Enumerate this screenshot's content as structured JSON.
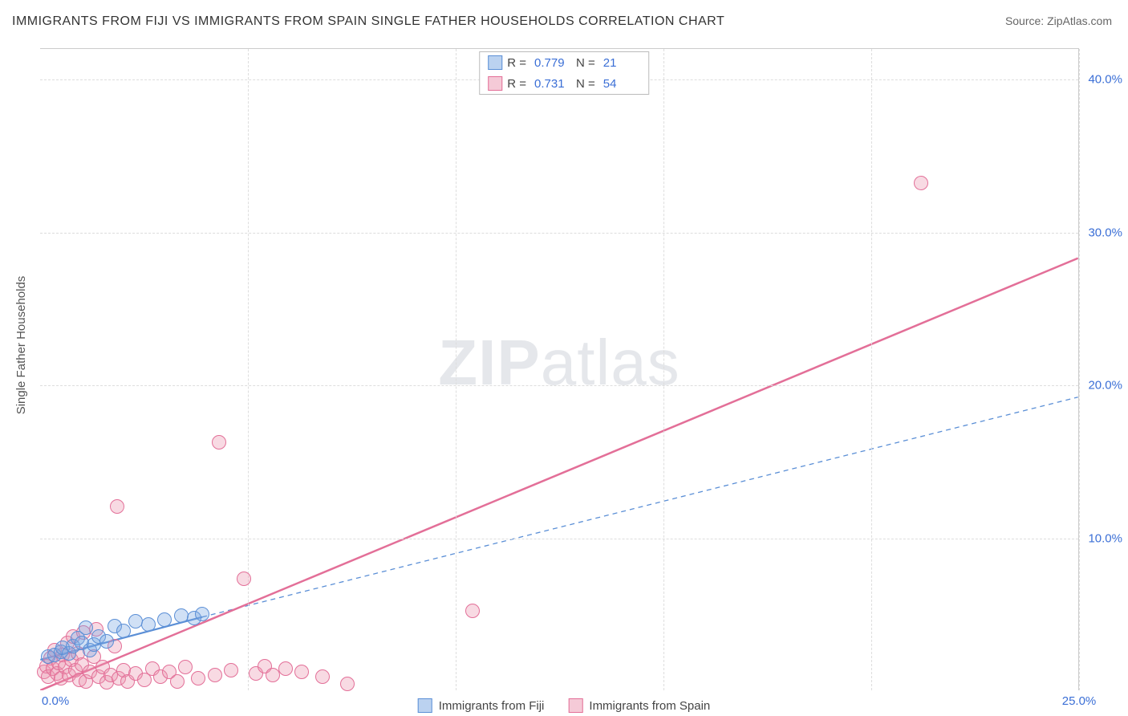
{
  "title": "IMMIGRANTS FROM FIJI VS IMMIGRANTS FROM SPAIN SINGLE FATHER HOUSEHOLDS CORRELATION CHART",
  "source_label": "Source:",
  "source_value": "ZipAtlas.com",
  "watermark_zip": "ZIP",
  "watermark_atlas": "atlas",
  "y_axis_title": "Single Father Households",
  "chart": {
    "type": "scatter",
    "xlim": [
      0,
      25
    ],
    "ylim": [
      0,
      42
    ],
    "x_ticks": [
      0,
      5,
      10,
      15,
      20,
      25
    ],
    "x_tick_labels": [
      "0.0%",
      "",
      "",
      "",
      "",
      "25.0%"
    ],
    "y_ticks": [
      10,
      20,
      30,
      40
    ],
    "y_tick_labels": [
      "10.0%",
      "20.0%",
      "30.0%",
      "40.0%"
    ],
    "background_color": "#ffffff",
    "grid_color": "#dddddd",
    "marker_radius": 9,
    "series": {
      "fiji": {
        "label": "Immigrants from Fiji",
        "color_fill": "rgba(120,165,225,0.35)",
        "color_stroke": "#5b8fd6",
        "r_value": "0.779",
        "n_value": "21",
        "trend": {
          "x1": 0,
          "y1": 2.0,
          "x2": 3.9,
          "y2": 4.8,
          "dash": "none",
          "width": 2.2,
          "ext_x2": 25,
          "ext_y2": 19.2,
          "ext_dash": "6,5",
          "ext_width": 1.3
        },
        "points": [
          {
            "x": 0.2,
            "y": 2.2
          },
          {
            "x": 0.35,
            "y": 2.3
          },
          {
            "x": 0.5,
            "y": 2.5
          },
          {
            "x": 0.55,
            "y": 2.8
          },
          {
            "x": 0.7,
            "y": 2.4
          },
          {
            "x": 0.8,
            "y": 2.9
          },
          {
            "x": 0.9,
            "y": 3.4
          },
          {
            "x": 1.0,
            "y": 3.1
          },
          {
            "x": 1.1,
            "y": 4.1
          },
          {
            "x": 1.2,
            "y": 2.6
          },
          {
            "x": 1.3,
            "y": 3.0
          },
          {
            "x": 1.4,
            "y": 3.5
          },
          {
            "x": 1.6,
            "y": 3.2
          },
          {
            "x": 1.8,
            "y": 4.2
          },
          {
            "x": 2.0,
            "y": 3.9
          },
          {
            "x": 2.3,
            "y": 4.5
          },
          {
            "x": 2.6,
            "y": 4.3
          },
          {
            "x": 3.0,
            "y": 4.6
          },
          {
            "x": 3.4,
            "y": 4.9
          },
          {
            "x": 3.7,
            "y": 4.7
          },
          {
            "x": 3.9,
            "y": 5.0
          }
        ]
      },
      "spain": {
        "label": "Immigrants from Spain",
        "color_fill": "rgba(235,150,175,0.35)",
        "color_stroke": "#e36f98",
        "r_value": "0.731",
        "n_value": "54",
        "trend": {
          "x1": 0,
          "y1": 0.0,
          "x2": 25,
          "y2": 28.3,
          "dash": "none",
          "width": 2.5
        },
        "points": [
          {
            "x": 0.1,
            "y": 1.2
          },
          {
            "x": 0.15,
            "y": 1.6
          },
          {
            "x": 0.2,
            "y": 0.9
          },
          {
            "x": 0.25,
            "y": 2.1
          },
          {
            "x": 0.3,
            "y": 1.4
          },
          {
            "x": 0.35,
            "y": 2.6
          },
          {
            "x": 0.4,
            "y": 1.1
          },
          {
            "x": 0.45,
            "y": 1.8
          },
          {
            "x": 0.5,
            "y": 0.8
          },
          {
            "x": 0.55,
            "y": 2.3
          },
          {
            "x": 0.6,
            "y": 1.5
          },
          {
            "x": 0.65,
            "y": 3.1
          },
          {
            "x": 0.7,
            "y": 1.0
          },
          {
            "x": 0.75,
            "y": 2.0
          },
          {
            "x": 0.8,
            "y": 3.5
          },
          {
            "x": 0.85,
            "y": 1.3
          },
          {
            "x": 0.9,
            "y": 2.4
          },
          {
            "x": 0.95,
            "y": 0.7
          },
          {
            "x": 1.0,
            "y": 1.7
          },
          {
            "x": 1.05,
            "y": 3.8
          },
          {
            "x": 1.1,
            "y": 0.6
          },
          {
            "x": 1.2,
            "y": 1.2
          },
          {
            "x": 1.3,
            "y": 2.2
          },
          {
            "x": 1.35,
            "y": 4.0
          },
          {
            "x": 1.4,
            "y": 0.9
          },
          {
            "x": 1.5,
            "y": 1.5
          },
          {
            "x": 1.6,
            "y": 0.5
          },
          {
            "x": 1.7,
            "y": 1.0
          },
          {
            "x": 1.8,
            "y": 2.9
          },
          {
            "x": 1.85,
            "y": 12.0
          },
          {
            "x": 1.9,
            "y": 0.8
          },
          {
            "x": 2.0,
            "y": 1.3
          },
          {
            "x": 2.1,
            "y": 0.6
          },
          {
            "x": 2.3,
            "y": 1.1
          },
          {
            "x": 2.5,
            "y": 0.7
          },
          {
            "x": 2.7,
            "y": 1.4
          },
          {
            "x": 2.9,
            "y": 0.9
          },
          {
            "x": 3.1,
            "y": 1.2
          },
          {
            "x": 3.3,
            "y": 0.6
          },
          {
            "x": 3.5,
            "y": 1.5
          },
          {
            "x": 3.8,
            "y": 0.8
          },
          {
            "x": 4.2,
            "y": 1.0
          },
          {
            "x": 4.3,
            "y": 16.2
          },
          {
            "x": 4.6,
            "y": 1.3
          },
          {
            "x": 4.9,
            "y": 7.3
          },
          {
            "x": 5.2,
            "y": 1.1
          },
          {
            "x": 5.4,
            "y": 1.6
          },
          {
            "x": 5.6,
            "y": 1.0
          },
          {
            "x": 5.9,
            "y": 1.4
          },
          {
            "x": 6.3,
            "y": 1.2
          },
          {
            "x": 6.8,
            "y": 0.9
          },
          {
            "x": 7.4,
            "y": 0.4
          },
          {
            "x": 10.4,
            "y": 5.2
          },
          {
            "x": 21.2,
            "y": 33.2
          }
        ]
      }
    }
  },
  "legend_r_label": "R =",
  "legend_n_label": "N ="
}
